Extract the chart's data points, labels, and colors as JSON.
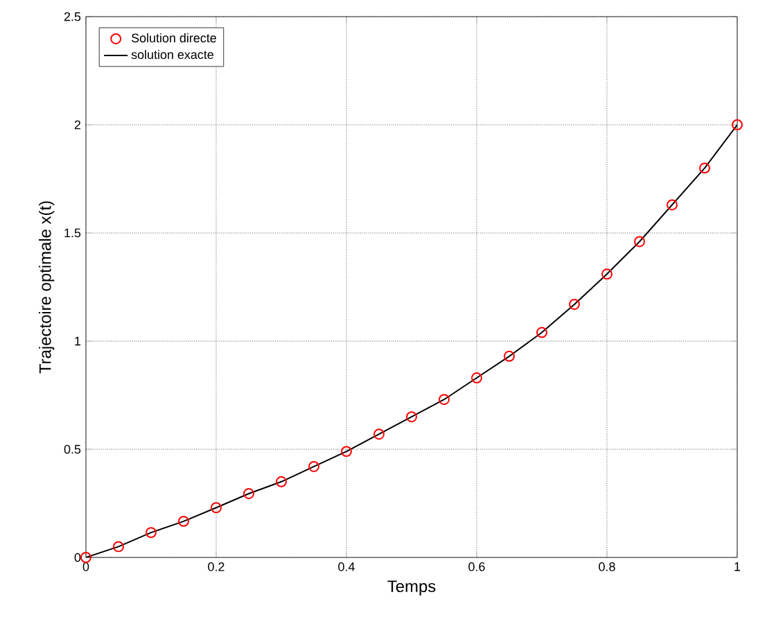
{
  "chart_data": {
    "type": "line",
    "xlabel": "Temps",
    "ylabel": "Trajectoire optimale x(t)",
    "x": [
      0,
      0.05,
      0.1,
      0.15,
      0.2,
      0.25,
      0.3,
      0.35,
      0.4,
      0.45,
      0.5,
      0.55,
      0.6,
      0.65,
      0.7,
      0.75,
      0.8,
      0.85,
      0.9,
      0.95,
      1.0
    ],
    "series": [
      {
        "name": "Solution directe",
        "type": "scatter",
        "color": "#ff0000",
        "marker": "circle",
        "values": [
          0,
          0.05,
          0.115,
          0.167,
          0.23,
          0.295,
          0.35,
          0.42,
          0.49,
          0.57,
          0.65,
          0.73,
          0.83,
          0.93,
          1.04,
          1.17,
          1.31,
          1.46,
          1.63,
          1.8,
          2.0
        ]
      },
      {
        "name": "solution exacte",
        "color": "#000000",
        "values": [
          0,
          0.05,
          0.115,
          0.167,
          0.23,
          0.295,
          0.35,
          0.42,
          0.49,
          0.57,
          0.65,
          0.73,
          0.83,
          0.93,
          1.04,
          1.17,
          1.31,
          1.46,
          1.63,
          1.8,
          2.0
        ]
      }
    ],
    "xlim": [
      0,
      1
    ],
    "ylim": [
      0,
      2.5
    ],
    "xticks": [
      0,
      0.2,
      0.4,
      0.6,
      0.8,
      1
    ],
    "yticks": [
      0,
      0.5,
      1,
      1.5,
      2,
      2.5
    ],
    "grid": true,
    "legend": "top left"
  }
}
